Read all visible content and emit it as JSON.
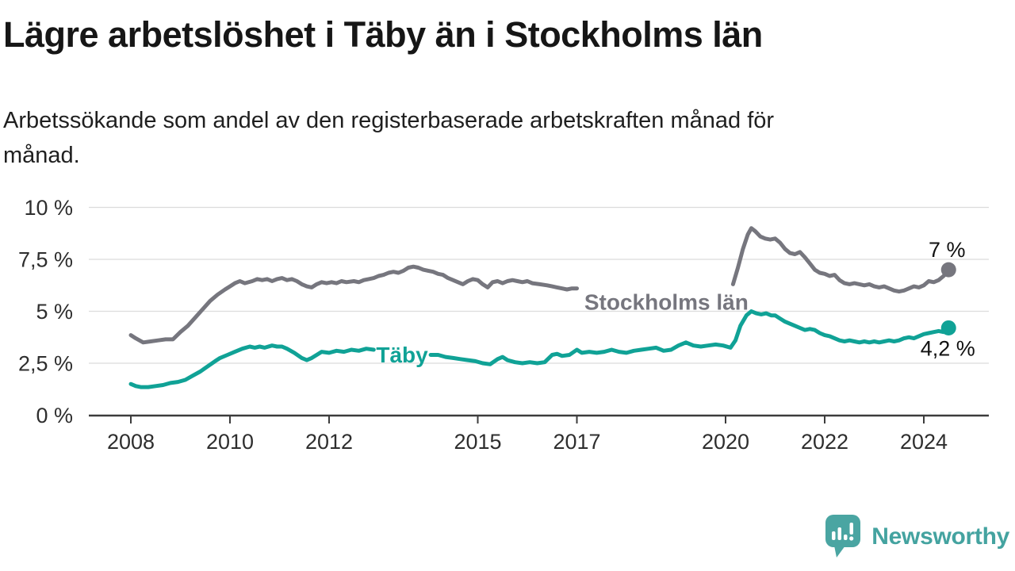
{
  "header": {
    "title": "Lägre arbetslöshet i Täby än i Stockholms län",
    "subtitle_line1": "Arbetssökande som andel av den registerbaserade arbetskraften månad för",
    "subtitle_line2": "månad."
  },
  "footer": {
    "brand": "Newsworthy",
    "brand_color": "#44a3a0"
  },
  "chart_data": {
    "type": "line",
    "title": "Lägre arbetslöshet i Täby än i Stockholms län",
    "subtitle": "Arbetssökande som andel av den registerbaserade arbetskraften månad för månad.",
    "unit": "%",
    "grid": true,
    "x_axis": {
      "min": 2007.15,
      "max": 2025.3,
      "ticks": [
        2008,
        2010,
        2012,
        2015,
        2017,
        2020,
        2022,
        2024
      ]
    },
    "y_axis": {
      "min": 0,
      "max": 10,
      "ticks": [
        0,
        2.5,
        5,
        7.5,
        10
      ],
      "tick_labels": [
        "0 %",
        "2,5 %",
        "5 %",
        "7,5 %",
        "10 %"
      ]
    },
    "series": [
      {
        "name": "Stockholms län",
        "color": "#76767e",
        "latest_value": 7.0,
        "latest_value_label": "7 %",
        "label_pos": {
          "year": 2017.15,
          "value": 5.45
        },
        "end_label_offset": {
          "dx": -2,
          "dy": -16
        },
        "segments": [
          [
            [
              2008.0,
              3.85
            ],
            [
              2008.1,
              3.7
            ],
            [
              2008.25,
              3.5
            ],
            [
              2008.4,
              3.55
            ],
            [
              2008.55,
              3.6
            ],
            [
              2008.7,
              3.65
            ],
            [
              2008.85,
              3.65
            ],
            [
              2009.0,
              4.0
            ],
            [
              2009.15,
              4.3
            ],
            [
              2009.3,
              4.7
            ],
            [
              2009.45,
              5.1
            ],
            [
              2009.6,
              5.5
            ],
            [
              2009.75,
              5.8
            ],
            [
              2009.9,
              6.05
            ],
            [
              2010.0,
              6.2
            ],
            [
              2010.1,
              6.35
            ],
            [
              2010.2,
              6.45
            ],
            [
              2010.3,
              6.35
            ],
            [
              2010.45,
              6.45
            ],
            [
              2010.55,
              6.55
            ],
            [
              2010.65,
              6.5
            ],
            [
              2010.75,
              6.55
            ],
            [
              2010.85,
              6.45
            ],
            [
              2010.95,
              6.55
            ],
            [
              2011.05,
              6.6
            ],
            [
              2011.15,
              6.5
            ],
            [
              2011.25,
              6.55
            ],
            [
              2011.35,
              6.45
            ],
            [
              2011.45,
              6.3
            ],
            [
              2011.55,
              6.2
            ],
            [
              2011.65,
              6.15
            ],
            [
              2011.75,
              6.3
            ],
            [
              2011.85,
              6.4
            ],
            [
              2011.95,
              6.35
            ],
            [
              2012.05,
              6.4
            ],
            [
              2012.15,
              6.35
            ],
            [
              2012.25,
              6.45
            ],
            [
              2012.35,
              6.4
            ],
            [
              2012.5,
              6.45
            ],
            [
              2012.6,
              6.4
            ],
            [
              2012.7,
              6.5
            ],
            [
              2012.8,
              6.55
            ],
            [
              2012.9,
              6.6
            ],
            [
              2013.0,
              6.7
            ],
            [
              2013.1,
              6.75
            ],
            [
              2013.2,
              6.85
            ],
            [
              2013.3,
              6.9
            ],
            [
              2013.4,
              6.85
            ],
            [
              2013.5,
              6.95
            ],
            [
              2013.6,
              7.1
            ],
            [
              2013.7,
              7.15
            ],
            [
              2013.8,
              7.1
            ],
            [
              2013.9,
              7.0
            ],
            [
              2014.0,
              6.95
            ],
            [
              2014.1,
              6.9
            ],
            [
              2014.2,
              6.8
            ],
            [
              2014.3,
              6.75
            ],
            [
              2014.4,
              6.6
            ],
            [
              2014.5,
              6.5
            ],
            [
              2014.6,
              6.4
            ],
            [
              2014.7,
              6.3
            ],
            [
              2014.8,
              6.45
            ],
            [
              2014.9,
              6.55
            ],
            [
              2015.0,
              6.5
            ],
            [
              2015.1,
              6.3
            ],
            [
              2015.2,
              6.15
            ],
            [
              2015.3,
              6.4
            ],
            [
              2015.4,
              6.45
            ],
            [
              2015.5,
              6.35
            ],
            [
              2015.6,
              6.45
            ],
            [
              2015.7,
              6.5
            ],
            [
              2015.8,
              6.45
            ],
            [
              2015.9,
              6.4
            ],
            [
              2016.0,
              6.45
            ],
            [
              2016.1,
              6.35
            ],
            [
              2016.25,
              6.3
            ],
            [
              2016.4,
              6.25
            ],
            [
              2016.5,
              6.2
            ],
            [
              2016.6,
              6.15
            ],
            [
              2016.7,
              6.1
            ],
            [
              2016.8,
              6.05
            ],
            [
              2016.9,
              6.1
            ],
            [
              2017.0,
              6.1
            ]
          ],
          [
            [
              2020.15,
              6.3
            ],
            [
              2020.25,
              7.1
            ],
            [
              2020.35,
              8.0
            ],
            [
              2020.45,
              8.7
            ],
            [
              2020.52,
              9.0
            ],
            [
              2020.6,
              8.85
            ],
            [
              2020.7,
              8.6
            ],
            [
              2020.8,
              8.5
            ],
            [
              2020.9,
              8.45
            ],
            [
              2021.0,
              8.5
            ],
            [
              2021.1,
              8.3
            ],
            [
              2021.2,
              8.0
            ],
            [
              2021.3,
              7.8
            ],
            [
              2021.4,
              7.75
            ],
            [
              2021.5,
              7.85
            ],
            [
              2021.6,
              7.6
            ],
            [
              2021.7,
              7.3
            ],
            [
              2021.8,
              7.0
            ],
            [
              2021.9,
              6.85
            ],
            [
              2022.0,
              6.8
            ],
            [
              2022.1,
              6.7
            ],
            [
              2022.2,
              6.75
            ],
            [
              2022.3,
              6.5
            ],
            [
              2022.4,
              6.35
            ],
            [
              2022.5,
              6.3
            ],
            [
              2022.6,
              6.35
            ],
            [
              2022.7,
              6.3
            ],
            [
              2022.8,
              6.25
            ],
            [
              2022.9,
              6.3
            ],
            [
              2023.0,
              6.2
            ],
            [
              2023.1,
              6.15
            ],
            [
              2023.2,
              6.2
            ],
            [
              2023.3,
              6.1
            ],
            [
              2023.4,
              6.0
            ],
            [
              2023.5,
              5.95
            ],
            [
              2023.6,
              6.0
            ],
            [
              2023.7,
              6.1
            ],
            [
              2023.8,
              6.2
            ],
            [
              2023.9,
              6.15
            ],
            [
              2024.0,
              6.25
            ],
            [
              2024.1,
              6.45
            ],
            [
              2024.2,
              6.4
            ],
            [
              2024.3,
              6.5
            ],
            [
              2024.4,
              6.7
            ],
            [
              2024.5,
              7.0
            ]
          ]
        ]
      },
      {
        "name": "Täby",
        "color": "#10a296",
        "latest_value": 4.2,
        "latest_value_label": "4,2 %",
        "label_pos": {
          "year": 2012.95,
          "value": 2.92
        },
        "end_label_offset": {
          "dx": -1,
          "dy": 35
        },
        "segments": [
          [
            [
              2008.0,
              1.5
            ],
            [
              2008.1,
              1.4
            ],
            [
              2008.2,
              1.35
            ],
            [
              2008.35,
              1.35
            ],
            [
              2008.5,
              1.4
            ],
            [
              2008.65,
              1.45
            ],
            [
              2008.8,
              1.55
            ],
            [
              2008.95,
              1.6
            ],
            [
              2009.1,
              1.7
            ],
            [
              2009.25,
              1.9
            ],
            [
              2009.4,
              2.1
            ],
            [
              2009.55,
              2.35
            ],
            [
              2009.7,
              2.6
            ],
            [
              2009.8,
              2.75
            ],
            [
              2009.95,
              2.9
            ],
            [
              2010.1,
              3.05
            ],
            [
              2010.25,
              3.2
            ],
            [
              2010.4,
              3.3
            ],
            [
              2010.5,
              3.25
            ],
            [
              2010.6,
              3.3
            ],
            [
              2010.7,
              3.25
            ],
            [
              2010.85,
              3.35
            ],
            [
              2010.95,
              3.3
            ],
            [
              2011.05,
              3.3
            ],
            [
              2011.15,
              3.2
            ],
            [
              2011.3,
              3.0
            ],
            [
              2011.45,
              2.75
            ],
            [
              2011.55,
              2.65
            ],
            [
              2011.65,
              2.75
            ],
            [
              2011.75,
              2.9
            ],
            [
              2011.85,
              3.05
            ],
            [
              2012.0,
              3.0
            ],
            [
              2012.15,
              3.1
            ],
            [
              2012.3,
              3.05
            ],
            [
              2012.45,
              3.15
            ],
            [
              2012.6,
              3.1
            ],
            [
              2012.75,
              3.2
            ],
            [
              2012.9,
              3.15
            ]
          ],
          [
            [
              2014.05,
              2.9
            ],
            [
              2014.2,
              2.9
            ],
            [
              2014.35,
              2.8
            ],
            [
              2014.5,
              2.75
            ],
            [
              2014.65,
              2.7
            ],
            [
              2014.8,
              2.65
            ],
            [
              2014.95,
              2.6
            ],
            [
              2015.1,
              2.5
            ],
            [
              2015.25,
              2.45
            ],
            [
              2015.4,
              2.7
            ],
            [
              2015.5,
              2.8
            ],
            [
              2015.6,
              2.65
            ],
            [
              2015.75,
              2.55
            ],
            [
              2015.9,
              2.5
            ],
            [
              2016.05,
              2.55
            ],
            [
              2016.2,
              2.5
            ],
            [
              2016.35,
              2.55
            ],
            [
              2016.5,
              2.9
            ],
            [
              2016.6,
              2.95
            ],
            [
              2016.7,
              2.85
            ],
            [
              2016.85,
              2.9
            ],
            [
              2017.0,
              3.15
            ],
            [
              2017.1,
              3.0
            ],
            [
              2017.25,
              3.05
            ],
            [
              2017.4,
              3.0
            ],
            [
              2017.55,
              3.05
            ],
            [
              2017.7,
              3.15
            ],
            [
              2017.85,
              3.05
            ],
            [
              2018.0,
              3.0
            ],
            [
              2018.15,
              3.1
            ],
            [
              2018.3,
              3.15
            ],
            [
              2018.45,
              3.2
            ],
            [
              2018.6,
              3.25
            ],
            [
              2018.75,
              3.1
            ],
            [
              2018.9,
              3.15
            ],
            [
              2019.05,
              3.35
            ],
            [
              2019.2,
              3.5
            ],
            [
              2019.35,
              3.35
            ],
            [
              2019.5,
              3.3
            ],
            [
              2019.65,
              3.35
            ],
            [
              2019.8,
              3.4
            ],
            [
              2019.95,
              3.35
            ],
            [
              2020.1,
              3.25
            ],
            [
              2020.2,
              3.6
            ],
            [
              2020.3,
              4.3
            ],
            [
              2020.42,
              4.8
            ],
            [
              2020.52,
              5.0
            ],
            [
              2020.62,
              4.9
            ],
            [
              2020.72,
              4.85
            ],
            [
              2020.82,
              4.9
            ],
            [
              2020.92,
              4.8
            ],
            [
              2021.0,
              4.8
            ],
            [
              2021.1,
              4.65
            ],
            [
              2021.2,
              4.5
            ],
            [
              2021.3,
              4.4
            ],
            [
              2021.4,
              4.3
            ],
            [
              2021.5,
              4.2
            ],
            [
              2021.6,
              4.1
            ],
            [
              2021.7,
              4.15
            ],
            [
              2021.8,
              4.1
            ],
            [
              2021.9,
              3.95
            ],
            [
              2022.0,
              3.85
            ],
            [
              2022.1,
              3.8
            ],
            [
              2022.2,
              3.7
            ],
            [
              2022.3,
              3.6
            ],
            [
              2022.4,
              3.55
            ],
            [
              2022.5,
              3.6
            ],
            [
              2022.6,
              3.55
            ],
            [
              2022.7,
              3.5
            ],
            [
              2022.8,
              3.55
            ],
            [
              2022.9,
              3.5
            ],
            [
              2023.0,
              3.55
            ],
            [
              2023.1,
              3.5
            ],
            [
              2023.2,
              3.55
            ],
            [
              2023.3,
              3.6
            ],
            [
              2023.4,
              3.55
            ],
            [
              2023.5,
              3.6
            ],
            [
              2023.6,
              3.7
            ],
            [
              2023.7,
              3.75
            ],
            [
              2023.8,
              3.7
            ],
            [
              2023.9,
              3.8
            ],
            [
              2024.0,
              3.9
            ],
            [
              2024.1,
              3.95
            ],
            [
              2024.2,
              4.0
            ],
            [
              2024.3,
              4.05
            ],
            [
              2024.4,
              4.0
            ],
            [
              2024.5,
              4.2
            ]
          ]
        ]
      }
    ],
    "style": {
      "grid_color": "#dcdcdc",
      "axis_color": "#3c3c3c",
      "axis_label_color": "#2e2e2e",
      "end_label_color": "#111111"
    }
  }
}
